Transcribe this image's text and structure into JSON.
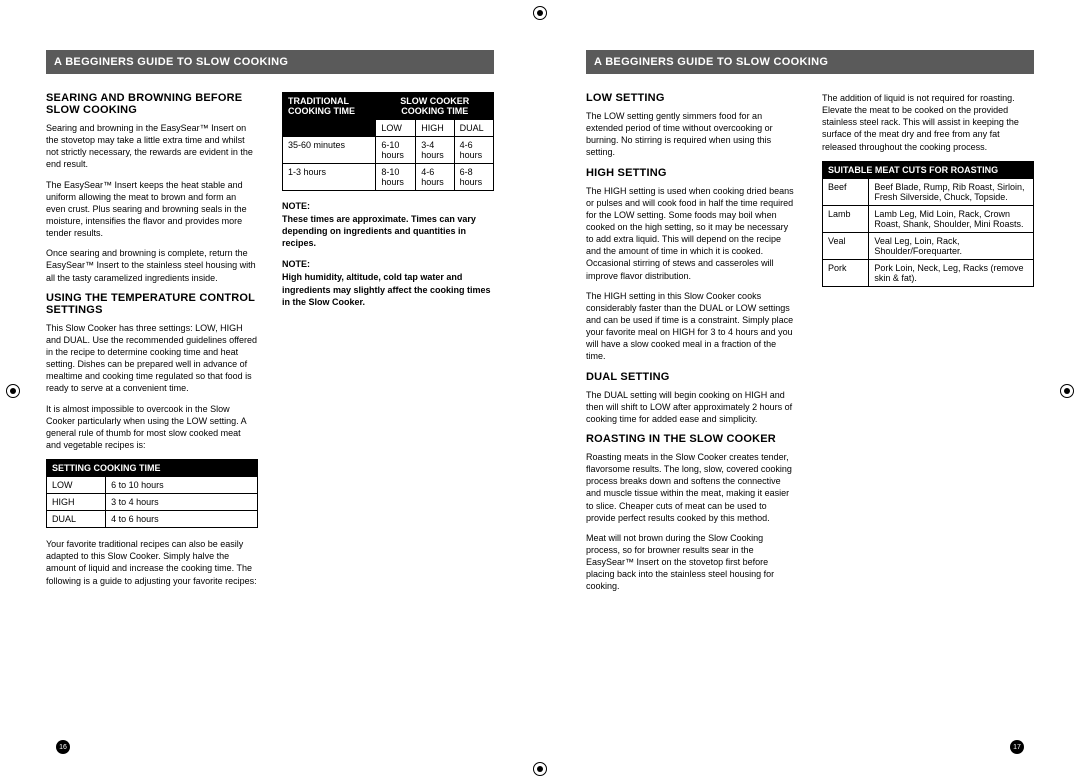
{
  "leftPage": {
    "header": "A BEGGINERS GUIDE TO SLOW COOKING",
    "footerNum": "16",
    "col1": {
      "h1": "SEARING AND BROWNING BEFORE SLOW COOKING",
      "p1": "Searing and browning in the EasySear™ Insert on the stovetop may take a little extra time and whilst not strictly necessary, the rewards are evident in the end result.",
      "p2": "The EasySear™ Insert keeps the heat stable and uniform allowing the meat to brown and form an even crust. Plus searing and browning seals in the moisture, intensifies the flavor and provides more tender results.",
      "p3": "Once searing and browning is complete, return the EasySear™ Insert to the stainless steel housing with all the tasty caramelized ingredients inside.",
      "h2": "USING THE TEMPERATURE CONTROL SETTINGS",
      "p4": "This Slow Cooker has three settings: LOW, HIGH and DUAL. Use the recommended guidelines offered in the recipe to determine cooking time and heat setting. Dishes can be prepared well in advance of mealtime and cooking time regulated so that food is ready to serve at a convenient time.",
      "p5": "It is almost impossible to overcook in the Slow Cooker particularly when using the LOW setting. A general rule of thumb for most slow cooked meat and vegetable recipes is:",
      "tbl1": {
        "header": "SETTING COOKING TIME",
        "rows": [
          [
            "LOW",
            "6 to 10 hours"
          ],
          [
            "HIGH",
            "3 to 4 hours"
          ],
          [
            "DUAL",
            "4 to 6 hours"
          ]
        ]
      },
      "p6": "Your favorite traditional recipes can also be easily adapted to this Slow Cooker. Simply halve the amount of liquid and increase the cooking time. The following is a guide to adjusting your favorite recipes:"
    },
    "col2": {
      "tbl2": {
        "h1": "TRADITIONAL COOKING TIME",
        "h2": "SLOW COOKER COOKING TIME",
        "sub": [
          "LOW",
          "HIGH",
          "DUAL"
        ],
        "rows": [
          [
            "35-60  minutes",
            "6-10 hours",
            "3-4 hours",
            "4-6 hours"
          ],
          [
            "1-3 hours",
            "8-10 hours",
            "4-6 hours",
            "6-8 hours"
          ]
        ]
      },
      "note1Label": "NOTE:",
      "note1": "These times are approximate. Times can vary depending on ingredients and quantities in recipes.",
      "note2Label": "NOTE:",
      "note2": "High humidity, altitude, cold tap water and ingredients may slightly affect the cooking times in the Slow Cooker."
    }
  },
  "rightPage": {
    "header": "A BEGGINERS GUIDE TO SLOW COOKING",
    "footerNum": "17",
    "col1": {
      "h1": "LOW SETTING",
      "p1": "The LOW setting gently simmers food for an extended period of time without overcooking or burning. No stirring is required when using this setting.",
      "h2": "HIGH SETTING",
      "p2": "The HIGH setting is used when cooking dried beans or pulses and will cook food in half the time required for the LOW setting. Some foods may boil when cooked on the high setting, so it may be necessary to add extra liquid. This will depend on the recipe and the amount of time in which it is cooked. Occasional stirring of stews and casseroles will improve flavor distribution.",
      "p3": "The HIGH setting in this Slow Cooker cooks considerably faster than the DUAL or LOW settings and can be used if time is a constraint. Simply place your favorite meal on HIGH for 3 to 4 hours and you will have a slow cooked meal in a fraction of the time.",
      "h3": "DUAL SETTING",
      "p4": "The DUAL setting will begin cooking on HIGH and then will shift to LOW after approximately 2 hours of cooking time for added ease and simplicity.",
      "h4": "ROASTING IN THE SLOW COOKER",
      "p5": "Roasting meats in the Slow Cooker creates tender, flavorsome results. The long, slow, covered cooking process breaks down and softens the connective and muscle tissue within the meat, making it easier to slice. Cheaper cuts of meat can be used to provide perfect results cooked by this method.",
      "p6": "Meat will not brown during the Slow Cooking process, so for browner results sear in the EasySear™ Insert on the stovetop first before placing back into the stainless steel housing for cooking."
    },
    "col2": {
      "p1": "The addition of liquid is not required for roasting. Elevate the meat to be cooked on the provided stainless steel rack. This will assist in keeping the surface of the meat dry and free from any fat released throughout the cooking process.",
      "tbl": {
        "header": "SUITABLE MEAT CUTS FOR ROASTING",
        "rows": [
          [
            "Beef",
            "Beef Blade, Rump, Rib Roast, Sirloin, Fresh Silverside, Chuck, Topside."
          ],
          [
            "Lamb",
            "Lamb Leg, Mid Loin, Rack, Crown Roast, Shank, Shoulder, Mini Roasts."
          ],
          [
            "Veal",
            "Veal Leg, Loin, Rack, Shoulder/Forequarter."
          ],
          [
            "Pork",
            "Pork Loin, Neck, Leg, Racks (remove skin & fat)."
          ]
        ]
      }
    }
  }
}
